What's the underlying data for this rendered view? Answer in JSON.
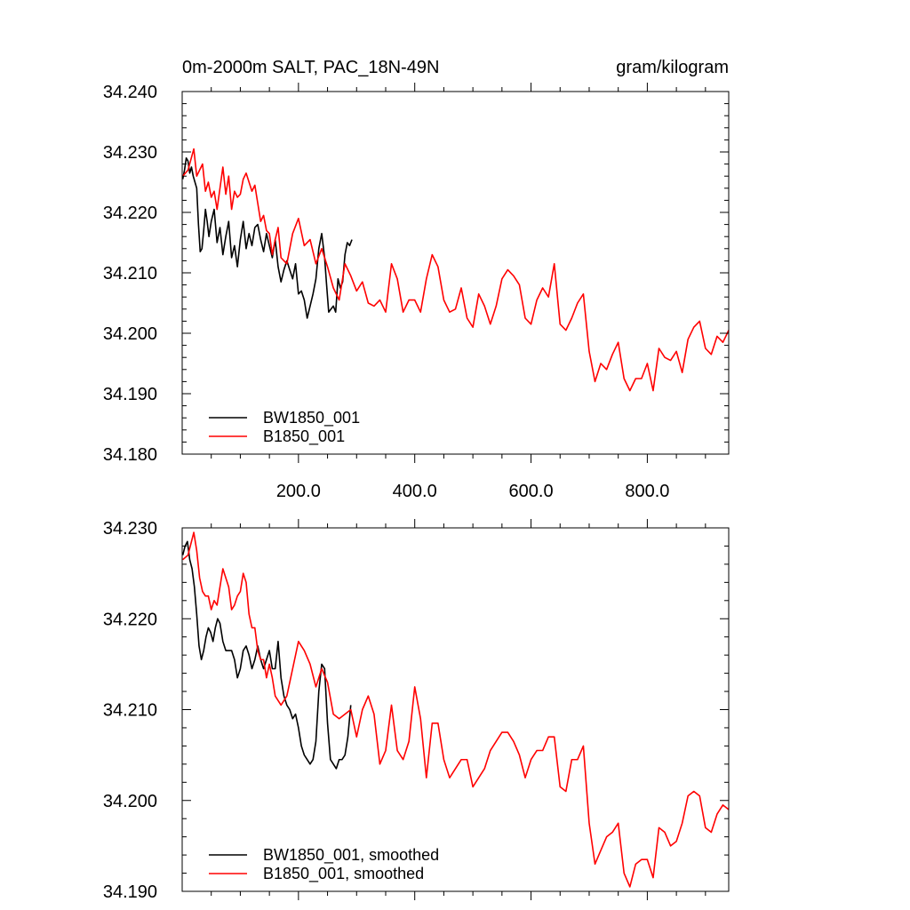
{
  "colors": {
    "black": "#000000",
    "red": "#ff0000"
  },
  "chart_data": [
    {
      "type": "line",
      "title_left": "0m-2000m SALT, PAC_18N-49N",
      "title_right": "gram/kilogram",
      "xlim": [
        0,
        940
      ],
      "ylim": [
        34.18,
        34.24
      ],
      "x_ticks": [
        200,
        400,
        600,
        800
      ],
      "x_tick_labels": [
        "200.0",
        "400.0",
        "600.0",
        "800.0"
      ],
      "y_ticks": [
        34.18,
        34.19,
        34.2,
        34.21,
        34.22,
        34.23,
        34.24
      ],
      "y_tick_labels": [
        "34.180",
        "34.190",
        "34.200",
        "34.210",
        "34.220",
        "34.230",
        "34.240"
      ],
      "legend_position": "bottom-left",
      "series": [
        {
          "name": "BW1850_001",
          "color": "#000000",
          "x": [
            1,
            4,
            7,
            10,
            13,
            16,
            19,
            22,
            25,
            28,
            31,
            34,
            37,
            40,
            43,
            46,
            50,
            55,
            60,
            65,
            70,
            75,
            80,
            85,
            90,
            95,
            100,
            105,
            110,
            115,
            120,
            125,
            130,
            135,
            140,
            145,
            150,
            155,
            160,
            165,
            170,
            175,
            180,
            185,
            190,
            195,
            200,
            205,
            210,
            215,
            220,
            225,
            230,
            235,
            240,
            245,
            248,
            252,
            256,
            260,
            264,
            268,
            272,
            276,
            280,
            284,
            288,
            292
          ],
          "y": [
            34.2255,
            34.227,
            34.229,
            34.2285,
            34.2265,
            34.2275,
            34.226,
            34.225,
            34.224,
            34.218,
            34.2135,
            34.214,
            34.217,
            34.2205,
            34.2185,
            34.216,
            34.2185,
            34.2205,
            34.215,
            34.2175,
            34.213,
            34.216,
            34.2185,
            34.2125,
            34.2145,
            34.211,
            34.2155,
            34.2185,
            34.214,
            34.2165,
            34.2145,
            34.2175,
            34.218,
            34.2155,
            34.2135,
            34.2165,
            34.2145,
            34.2125,
            34.2155,
            34.211,
            34.2085,
            34.2105,
            34.212,
            34.2105,
            34.209,
            34.2115,
            34.2065,
            34.207,
            34.2055,
            34.2025,
            34.2045,
            34.2065,
            34.209,
            34.214,
            34.2165,
            34.2125,
            34.2085,
            34.2035,
            34.204,
            34.2045,
            34.2035,
            34.209,
            34.2075,
            34.2085,
            34.213,
            34.215,
            34.2145,
            34.2155
          ]
        },
        {
          "name": "B1850_001",
          "color": "#ff0000",
          "x": [
            1,
            10,
            20,
            25,
            30,
            35,
            40,
            45,
            50,
            55,
            60,
            65,
            70,
            75,
            80,
            85,
            90,
            95,
            100,
            105,
            110,
            115,
            120,
            125,
            130,
            135,
            140,
            145,
            150,
            155,
            160,
            165,
            170,
            180,
            190,
            200,
            210,
            220,
            230,
            240,
            250,
            260,
            270,
            280,
            290,
            300,
            310,
            320,
            330,
            340,
            350,
            360,
            370,
            380,
            390,
            400,
            410,
            420,
            430,
            440,
            450,
            460,
            470,
            480,
            490,
            500,
            510,
            520,
            530,
            540,
            550,
            560,
            570,
            580,
            590,
            600,
            610,
            620,
            630,
            640,
            650,
            660,
            670,
            680,
            690,
            700,
            710,
            720,
            730,
            740,
            750,
            760,
            770,
            780,
            790,
            800,
            810,
            820,
            830,
            840,
            850,
            860,
            870,
            880,
            890,
            900,
            910,
            920,
            930,
            940
          ],
          "y": [
            34.226,
            34.227,
            34.2305,
            34.226,
            34.227,
            34.228,
            34.2235,
            34.225,
            34.2225,
            34.2235,
            34.2205,
            34.224,
            34.2275,
            34.223,
            34.226,
            34.2205,
            34.2235,
            34.2225,
            34.223,
            34.2255,
            34.2265,
            34.225,
            34.2235,
            34.2245,
            34.2215,
            34.2185,
            34.2195,
            34.217,
            34.2165,
            34.213,
            34.2155,
            34.2175,
            34.2125,
            34.2115,
            34.2165,
            34.219,
            34.2145,
            34.2155,
            34.2115,
            34.214,
            34.211,
            34.2075,
            34.2055,
            34.2115,
            34.2095,
            34.207,
            34.2085,
            34.205,
            34.2045,
            34.2055,
            34.2035,
            34.2115,
            34.209,
            34.2035,
            34.2055,
            34.2055,
            34.2035,
            34.209,
            34.213,
            34.211,
            34.2055,
            34.2035,
            34.204,
            34.2075,
            34.2025,
            34.201,
            34.2065,
            34.2045,
            34.2015,
            34.2045,
            34.209,
            34.2105,
            34.2095,
            34.208,
            34.2025,
            34.2015,
            34.2055,
            34.2075,
            34.206,
            34.2115,
            34.2015,
            34.2005,
            34.2025,
            34.205,
            34.2065,
            34.197,
            34.192,
            34.195,
            34.194,
            34.1965,
            34.1985,
            34.1925,
            34.1905,
            34.1925,
            34.1925,
            34.195,
            34.1905,
            34.1975,
            34.196,
            34.1955,
            34.197,
            34.1935,
            34.199,
            34.201,
            34.202,
            34.1975,
            34.1965,
            34.1995,
            34.1985,
            34.2005
          ]
        }
      ]
    },
    {
      "type": "line",
      "xlim": [
        0,
        940
      ],
      "ylim": [
        34.19,
        34.23
      ],
      "x_ticks": [
        200,
        400,
        600,
        800
      ],
      "y_ticks": [
        34.19,
        34.2,
        34.21,
        34.22,
        34.23
      ],
      "y_tick_labels": [
        "34.190",
        "34.200",
        "34.210",
        "34.220",
        "34.230"
      ],
      "legend_position": "bottom-left",
      "series": [
        {
          "name": "BW1850_001, smoothed",
          "color": "#000000",
          "x": [
            1,
            5,
            9,
            13,
            17,
            21,
            25,
            29,
            33,
            37,
            41,
            45,
            49,
            53,
            57,
            61,
            65,
            70,
            75,
            80,
            85,
            90,
            95,
            100,
            105,
            110,
            115,
            120,
            125,
            130,
            135,
            140,
            145,
            150,
            155,
            160,
            165,
            170,
            175,
            180,
            185,
            190,
            195,
            200,
            205,
            210,
            215,
            220,
            225,
            230,
            235,
            240,
            245,
            250,
            255,
            260,
            265,
            270,
            275,
            280,
            285,
            290
          ],
          "y": [
            34.227,
            34.228,
            34.2285,
            34.2265,
            34.2255,
            34.2235,
            34.2205,
            34.217,
            34.2155,
            34.2165,
            34.218,
            34.219,
            34.2185,
            34.2175,
            34.219,
            34.22,
            34.2195,
            34.2175,
            34.2165,
            34.2165,
            34.2165,
            34.2155,
            34.2135,
            34.2145,
            34.2165,
            34.217,
            34.216,
            34.2145,
            34.2155,
            34.217,
            34.2155,
            34.2145,
            34.2155,
            34.2165,
            34.2145,
            34.2145,
            34.2175,
            34.2135,
            34.2115,
            34.2105,
            34.21,
            34.209,
            34.2095,
            34.208,
            34.206,
            34.205,
            34.2045,
            34.204,
            34.2045,
            34.2065,
            34.212,
            34.215,
            34.2145,
            34.2085,
            34.2045,
            34.204,
            34.2035,
            34.2045,
            34.2045,
            34.205,
            34.207,
            34.2105
          ]
        },
        {
          "name": "B1850_001, smoothed",
          "color": "#ff0000",
          "x": [
            1,
            10,
            20,
            25,
            30,
            35,
            40,
            45,
            50,
            55,
            60,
            65,
            70,
            75,
            80,
            85,
            90,
            95,
            100,
            105,
            110,
            115,
            120,
            125,
            130,
            135,
            140,
            145,
            150,
            155,
            160,
            165,
            170,
            180,
            190,
            200,
            210,
            220,
            230,
            240,
            250,
            260,
            270,
            280,
            290,
            300,
            310,
            320,
            330,
            340,
            350,
            360,
            370,
            380,
            390,
            400,
            410,
            420,
            430,
            440,
            450,
            460,
            470,
            480,
            490,
            500,
            510,
            520,
            530,
            540,
            550,
            560,
            570,
            580,
            590,
            600,
            610,
            620,
            630,
            640,
            650,
            660,
            670,
            680,
            690,
            700,
            710,
            720,
            730,
            740,
            750,
            760,
            770,
            780,
            790,
            800,
            810,
            820,
            830,
            840,
            850,
            860,
            870,
            880,
            890,
            900,
            910,
            920,
            930,
            940
          ],
          "y": [
            34.2265,
            34.227,
            34.2295,
            34.2275,
            34.2245,
            34.223,
            34.2225,
            34.2225,
            34.221,
            34.222,
            34.2215,
            34.2235,
            34.2255,
            34.2245,
            34.2235,
            34.221,
            34.2215,
            34.2225,
            34.223,
            34.225,
            34.224,
            34.2205,
            34.219,
            34.219,
            34.2165,
            34.2155,
            34.2155,
            34.2135,
            34.215,
            34.2135,
            34.2115,
            34.211,
            34.2105,
            34.2115,
            34.2145,
            34.2175,
            34.2165,
            34.215,
            34.2125,
            34.2145,
            34.213,
            34.2095,
            34.209,
            34.2095,
            34.21,
            34.207,
            34.21,
            34.2115,
            34.2095,
            34.204,
            34.2055,
            34.2105,
            34.2055,
            34.2045,
            34.2065,
            34.2125,
            34.209,
            34.2025,
            34.2085,
            34.2085,
            34.2045,
            34.2025,
            34.2035,
            34.2045,
            34.2045,
            34.2015,
            34.2025,
            34.2035,
            34.2055,
            34.2065,
            34.2075,
            34.2075,
            34.2065,
            34.205,
            34.2025,
            34.2045,
            34.2055,
            34.2055,
            34.207,
            34.207,
            34.2015,
            34.201,
            34.2045,
            34.2045,
            34.206,
            34.1975,
            34.193,
            34.1945,
            34.196,
            34.1965,
            34.1975,
            34.192,
            34.1905,
            34.193,
            34.1935,
            34.1935,
            34.1915,
            34.197,
            34.1965,
            34.195,
            34.1955,
            34.1975,
            34.2005,
            34.201,
            34.2005,
            34.197,
            34.1965,
            34.1985,
            34.1995,
            34.199
          ]
        }
      ]
    }
  ]
}
